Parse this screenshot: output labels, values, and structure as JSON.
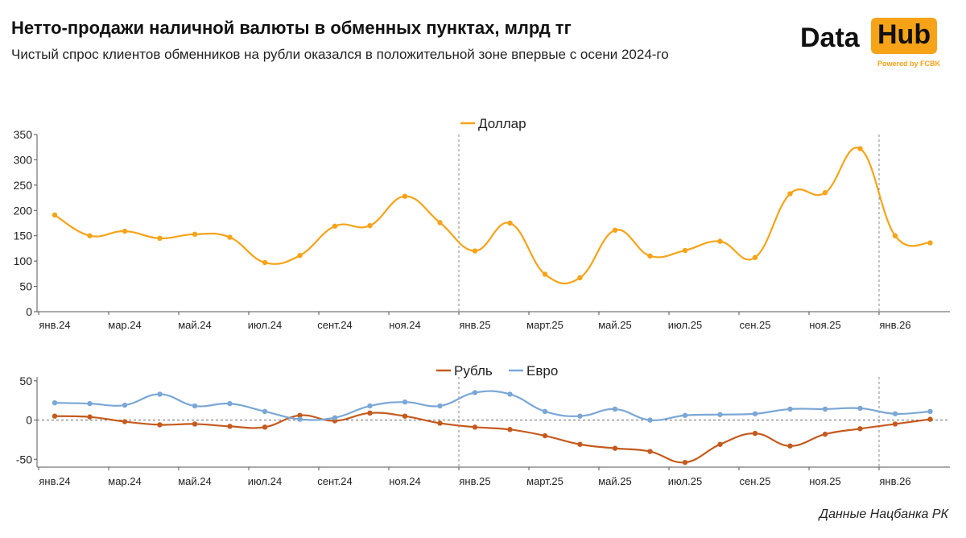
{
  "title": "Нетто-продажи наличной валюты в обменных пунктах, млрд тг",
  "subtitle": "Чистый спрос клиентов обменников на рубли оказался в положительной зоне впервые с осени 2024-го",
  "logo": {
    "word1": "Data",
    "word2": "Hub",
    "powered": "Powered by FCBK"
  },
  "source": "Данные Нацбанка РК",
  "colors": {
    "dollar": "#f6a318",
    "ruble": "#c55a1e",
    "euro": "#7aa7d6",
    "accent": "#f6a318"
  },
  "chart_data": [
    {
      "type": "line",
      "x": [
        "янв.24",
        "фев.24",
        "мар.24",
        "апр.24",
        "май.24",
        "июн.24",
        "июл.24",
        "авг.24",
        "сент.24",
        "окт.24",
        "ноя.24",
        "дек.24",
        "янв.25",
        "фев.25",
        "март.25",
        "апр.25",
        "май.25",
        "июн.25",
        "июл.25",
        "авг.25",
        "сен.25",
        "окт.25",
        "ноя.25",
        "дек.25",
        "янв.26",
        "фев.26"
      ],
      "tick_labels": [
        "янв.24",
        "мар.24",
        "май.24",
        "июл.24",
        "сент.24",
        "ноя.24",
        "янв.25",
        "март.25",
        "май.25",
        "июл.25",
        "сен.25",
        "ноя.25",
        "янв.26"
      ],
      "series": [
        {
          "name": "Доллар",
          "values": [
            191,
            150,
            159,
            145,
            153,
            147,
            97,
            111,
            169,
            170,
            228,
            176,
            120,
            175,
            74,
            67,
            161,
            110,
            121,
            139,
            107,
            233,
            235,
            322,
            150,
            136
          ]
        }
      ],
      "ylim": [
        0,
        350
      ],
      "yticks": [
        0,
        50,
        100,
        150,
        200,
        250,
        300,
        350
      ],
      "legend": "top-center",
      "grid": false,
      "year_dividers": [
        "янв.25",
        "янв.26"
      ]
    },
    {
      "type": "line",
      "x": [
        "янв.24",
        "фев.24",
        "мар.24",
        "апр.24",
        "май.24",
        "июн.24",
        "июл.24",
        "авг.24",
        "сент.24",
        "окт.24",
        "ноя.24",
        "дек.24",
        "янв.25",
        "фев.25",
        "март.25",
        "апр.25",
        "май.25",
        "июн.25",
        "июл.25",
        "авг.25",
        "сен.25",
        "окт.25",
        "ноя.25",
        "дек.25",
        "янв.26",
        "фев.26"
      ],
      "tick_labels": [
        "янв.24",
        "мар.24",
        "май.24",
        "июл.24",
        "сент.24",
        "ноя.24",
        "янв.25",
        "март.25",
        "май.25",
        "июл.25",
        "сен.25",
        "ноя.25",
        "янв.26"
      ],
      "series": [
        {
          "name": "Рубль",
          "values": [
            5,
            4,
            -2,
            -6,
            -5,
            -8,
            -9,
            6,
            -1,
            9,
            5,
            -4,
            -9,
            -12,
            -20,
            -31,
            -36,
            -40,
            -54,
            -31,
            -17,
            -33,
            -18,
            -11,
            -5,
            1
          ]
        },
        {
          "name": "Евро",
          "values": [
            22,
            21,
            19,
            33,
            18,
            21,
            11,
            1,
            3,
            18,
            23,
            18,
            35,
            33,
            11,
            5,
            14,
            0,
            6,
            7,
            8,
            14,
            14,
            15,
            8,
            11
          ]
        }
      ],
      "ylim": [
        -60,
        55
      ],
      "yticks": [
        -50,
        0,
        50
      ],
      "legend": "top-center",
      "grid": false,
      "zero_line": "dashed",
      "year_dividers": [
        "янв.25",
        "янв.26"
      ]
    }
  ]
}
